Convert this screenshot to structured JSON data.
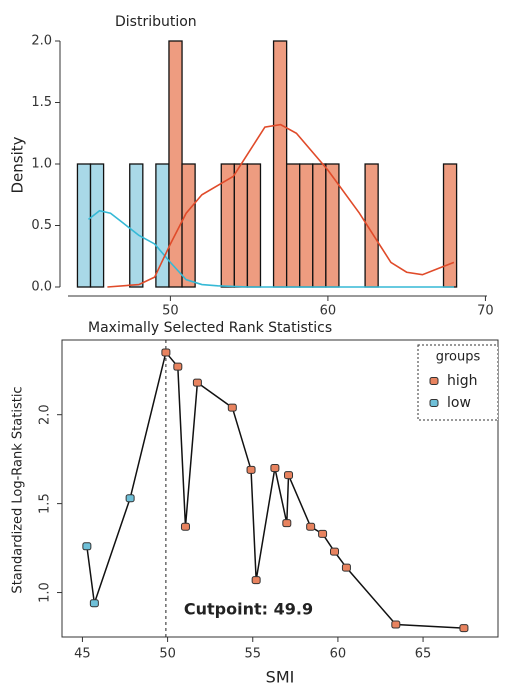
{
  "chart_data": [
    {
      "type": "histogram",
      "title": "Distribution",
      "y_label": "Density",
      "bins": [
        44.1,
        44.93,
        45.76,
        46.59,
        47.42,
        48.25,
        49.08,
        49.91,
        50.74,
        51.57,
        52.4,
        53.23,
        54.06,
        54.89,
        55.72,
        56.55,
        57.38,
        58.21,
        59.04,
        59.87,
        60.7,
        61.53,
        62.36,
        63.19,
        64.02,
        64.85,
        65.68,
        66.51,
        67.34,
        68.17,
        69.0
      ],
      "series": [
        {
          "color": "#a9d9e8",
          "line_color": "#35b9d6",
          "values": [
            1,
            1,
            0,
            0,
            1,
            0,
            1,
            0,
            0,
            0,
            0,
            0,
            0,
            0,
            0,
            0,
            0,
            0,
            0,
            0,
            0,
            0,
            0,
            0,
            0,
            0,
            0,
            0,
            0,
            0
          ],
          "density_x": [
            44.8,
            45.5,
            46.2,
            47,
            48,
            49,
            50,
            51,
            52,
            53,
            55,
            60,
            65,
            68
          ],
          "density": [
            0.55,
            0.62,
            0.6,
            0.52,
            0.42,
            0.35,
            0.2,
            0.06,
            0.02,
            0.01,
            0,
            0,
            0,
            0
          ]
        },
        {
          "color": "#ee9c80",
          "line_color": "#e04b2a",
          "values": [
            0,
            0,
            0,
            0,
            0,
            0,
            0,
            2,
            1,
            0,
            0,
            1,
            1,
            1,
            0,
            2,
            1,
            1,
            1,
            1,
            0,
            0,
            1,
            0,
            0,
            0,
            0,
            0,
            1,
            0
          ],
          "density_x": [
            46,
            48,
            49,
            50,
            51,
            52,
            54,
            55,
            56,
            57,
            58,
            60,
            62,
            63,
            64,
            65,
            66,
            67,
            68
          ],
          "density": [
            0,
            0.02,
            0.08,
            0.35,
            0.6,
            0.75,
            0.9,
            1.1,
            1.3,
            1.32,
            1.25,
            0.95,
            0.6,
            0.4,
            0.2,
            0.12,
            0.1,
            0.15,
            0.2
          ]
        }
      ],
      "xlim": [
        43.5,
        70.1
      ],
      "ylim": [
        0,
        2
      ],
      "xticks": [
        50,
        60,
        70
      ],
      "yticks": [
        {
          "value": 0,
          "label": "0.0"
        },
        0.5,
        {
          "value": 1,
          "label": "1.0"
        },
        1.5,
        {
          "value": 2,
          "label": "2.0"
        }
      ]
    },
    {
      "type": "scatter",
      "title": "Maximally Selected Rank Statistics",
      "x_label": "SMI",
      "y_label": "Standardized Log-Rank Statistic",
      "legend_title": "groups",
      "legend": "top-right",
      "cutpoint": 49.9,
      "annotation": "Cutpoint: 49.9",
      "series": [
        {
          "name": "high",
          "color": "#e8835f",
          "x": [
            49.9,
            50.6,
            51.05,
            51.75,
            53.8,
            54.9,
            55.2,
            56.3,
            57.0,
            57.1,
            58.4,
            59.1,
            59.8,
            60.5,
            63.4,
            67.4
          ],
          "values": [
            2.35,
            2.27,
            1.37,
            2.18,
            2.04,
            1.69,
            1.07,
            1.7,
            1.39,
            1.66,
            1.37,
            1.33,
            1.23,
            1.14,
            0.82,
            0.8
          ]
        },
        {
          "name": "low",
          "color": "#6fc0d8",
          "x": [
            45.26,
            45.7,
            47.8
          ],
          "values": [
            1.26,
            0.94,
            1.53
          ]
        }
      ],
      "xlim": [
        43.8,
        69.4
      ],
      "ylim": [
        0.75,
        2.42
      ],
      "xticks": [
        45,
        50,
        55,
        60,
        65
      ],
      "yticks": [
        {
          "value": 1,
          "label": "1.0"
        },
        1.5,
        {
          "value": 2,
          "label": "2.0"
        }
      ]
    }
  ]
}
